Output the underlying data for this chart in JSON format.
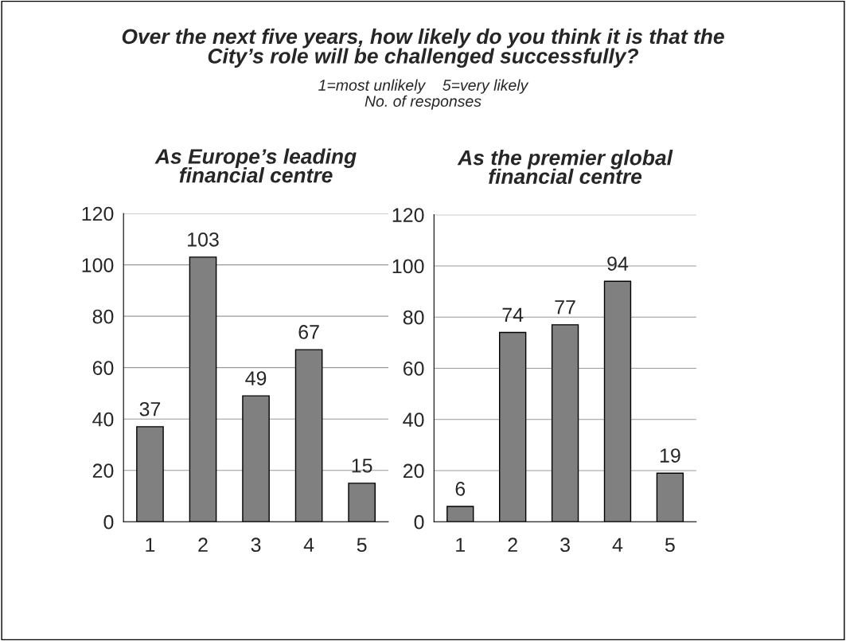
{
  "chart_data": [
    {
      "type": "bar",
      "title": "As Europe’s leading\nfinancial centre",
      "annotations": [
        "Over the next five years, how likely do you think it is that the\nCity’s role will be challenged successfully?",
        "1=most unlikely    5=very likely",
        "No. of responses"
      ],
      "categories": [
        "1",
        "2",
        "3",
        "4",
        "5"
      ],
      "values": [
        37,
        103,
        49,
        67,
        15
      ],
      "color": "#808080",
      "ylim": [
        0,
        120
      ],
      "yticks": [
        0,
        20,
        40,
        60,
        80,
        100,
        120
      ],
      "grid": "y",
      "data_labels": true
    },
    {
      "type": "bar",
      "title": "As the premier global\nfinancial centre",
      "categories": [
        "1",
        "2",
        "3",
        "4",
        "5"
      ],
      "values": [
        6,
        74,
        77,
        94,
        19
      ],
      "color": "#808080",
      "ylim": [
        0,
        120
      ],
      "yticks": [
        0,
        20,
        40,
        60,
        80,
        100,
        120
      ],
      "grid": "y",
      "data_labels": true
    }
  ]
}
